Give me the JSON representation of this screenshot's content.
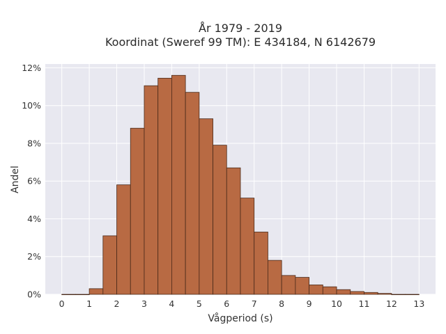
{
  "chart_data": {
    "type": "bar",
    "title_line1": "År 1979 - 2019",
    "title_line2": "Koordinat (Sweref 99 TM): E 434184, N 6142679",
    "xlabel": "Vågperiod (s)",
    "ylabel": "Andel",
    "bin_width": 0.5,
    "bin_starts": [
      0,
      0.5,
      1,
      1.5,
      2,
      2.5,
      3,
      3.5,
      4,
      4.5,
      5,
      5.5,
      6,
      6.5,
      7,
      7.5,
      8,
      8.5,
      9,
      9.5,
      10,
      10.5,
      11,
      11.5,
      12,
      12.5
    ],
    "values": [
      0.0,
      0.0,
      0.3,
      3.1,
      5.8,
      8.8,
      11.05,
      11.45,
      11.6,
      10.7,
      9.3,
      7.9,
      6.7,
      5.1,
      3.3,
      1.8,
      1.0,
      0.9,
      0.5,
      0.4,
      0.25,
      0.15,
      0.1,
      0.05,
      0.0,
      0.0
    ],
    "xlim": [
      -0.6,
      13.6
    ],
    "ylim": [
      0,
      12.2
    ],
    "x_ticks": [
      0,
      1,
      2,
      3,
      4,
      5,
      6,
      7,
      8,
      9,
      10,
      11,
      12,
      13
    ],
    "x_tick_labels": [
      "0",
      "1",
      "2",
      "3",
      "4",
      "5",
      "6",
      "7",
      "8",
      "9",
      "10",
      "11",
      "12",
      "13"
    ],
    "y_ticks": [
      0,
      2,
      4,
      6,
      8,
      10,
      12
    ],
    "y_tick_labels": [
      "0%",
      "2%",
      "4%",
      "6%",
      "8%",
      "10%",
      "12%"
    ],
    "grid": true,
    "colors": {
      "bar_fill": "#b86a43",
      "bar_edge": "#4a2a1a",
      "plot_bg": "#e8e8f0",
      "grid": "#ffffff"
    }
  }
}
